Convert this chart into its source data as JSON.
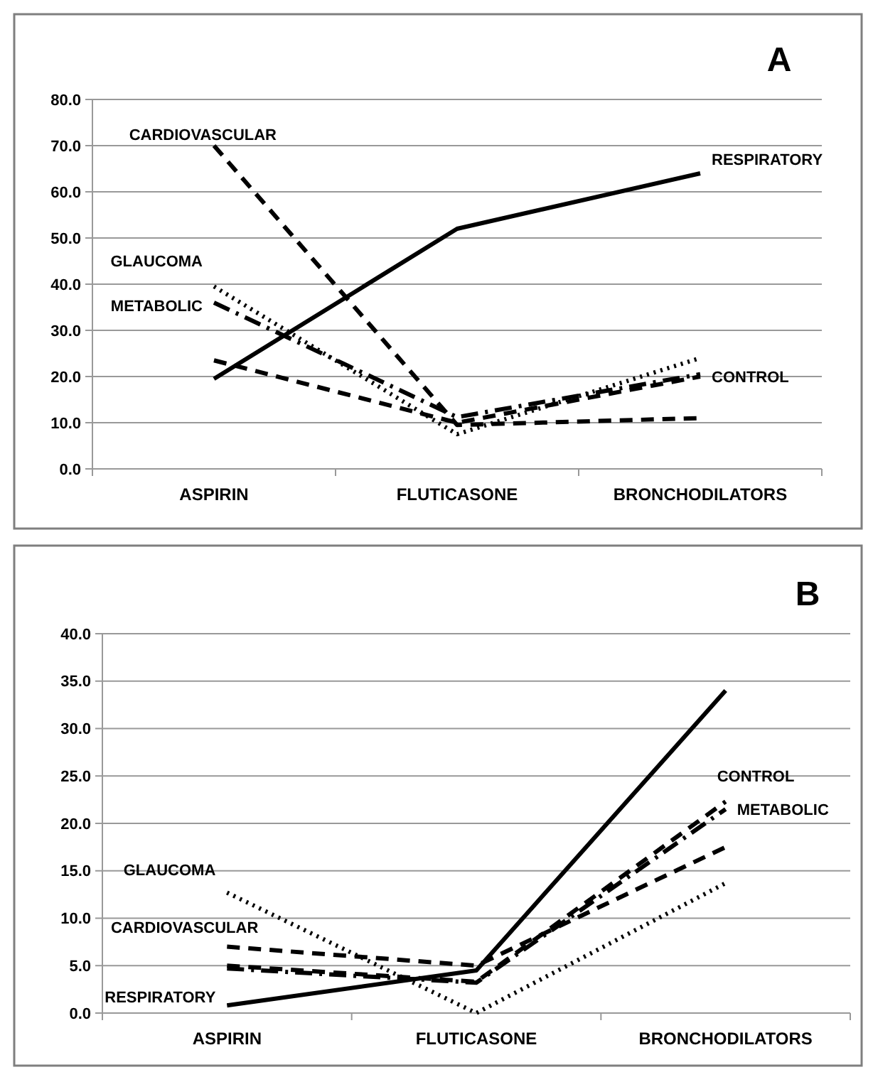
{
  "chart_data": [
    {
      "type": "line",
      "title": "A",
      "categories": [
        "ASPIRIN",
        "FLUTICASONE",
        "BRONCHODILATORS"
      ],
      "ylim": [
        0,
        80
      ],
      "yticks": [
        {
          "value": 0,
          "label": "0.0"
        },
        {
          "value": 10,
          "label": "10.0"
        },
        {
          "value": 20,
          "label": "20.0"
        },
        {
          "value": 30,
          "label": "30.0"
        },
        {
          "value": 40,
          "label": "40.0"
        },
        {
          "value": 50,
          "label": "50.0"
        },
        {
          "value": 60,
          "label": "60.0"
        },
        {
          "value": 70,
          "label": "70.0"
        },
        {
          "value": 80,
          "label": "80.0"
        }
      ],
      "grid": "y",
      "marker": "none",
      "series": [
        {
          "name": "RESPIRATORY",
          "color": "#000000",
          "line_style": "solid",
          "values": [
            19.5,
            52,
            64
          ]
        },
        {
          "name": "CARDIOVASCULAR",
          "color": "#000000",
          "line_style": "dashed",
          "values": [
            70,
            9.5,
            11
          ]
        },
        {
          "name": "GLAUCOMA",
          "color": "#000000",
          "line_style": "dotted",
          "values": [
            39.5,
            7.5,
            24
          ]
        },
        {
          "name": "METABOLIC",
          "color": "#000000",
          "line_style": "dashdot",
          "values": [
            36,
            11.2,
            20.5
          ]
        },
        {
          "name": "CONTROL",
          "color": "#000000",
          "line_style": "dashed",
          "values": [
            23.5,
            10,
            20
          ]
        }
      ]
    },
    {
      "type": "line",
      "title": "B",
      "categories": [
        "ASPIRIN",
        "FLUTICASONE",
        "BRONCHODILATORS"
      ],
      "ylim": [
        0,
        40
      ],
      "yticks": [
        {
          "value": 0,
          "label": "0.0"
        },
        {
          "value": 5,
          "label": "5.0"
        },
        {
          "value": 10,
          "label": "10.0"
        },
        {
          "value": 15,
          "label": "15.0"
        },
        {
          "value": 20,
          "label": "20.0"
        },
        {
          "value": 25,
          "label": "25.0"
        },
        {
          "value": 30,
          "label": "30.0"
        },
        {
          "value": 35,
          "label": "35.0"
        },
        {
          "value": 40,
          "label": "40.0"
        }
      ],
      "grid": "y",
      "marker": "none",
      "series": [
        {
          "name": "RESPIRATORY",
          "color": "#000000",
          "line_style": "solid",
          "values": [
            0.8,
            4.5,
            34
          ]
        },
        {
          "name": "CARDIOVASCULAR",
          "color": "#000000",
          "line_style": "dashed",
          "values": [
            7,
            5,
            17.5
          ]
        },
        {
          "name": "GLAUCOMA",
          "color": "#000000",
          "line_style": "dotted",
          "values": [
            12.7,
            0,
            13.7
          ]
        },
        {
          "name": "METABOLIC",
          "color": "#000000",
          "line_style": "dashdot",
          "values": [
            4.7,
            3.2,
            21.5
          ]
        },
        {
          "name": "CONTROL",
          "color": "#000000",
          "line_style": "dashed",
          "values": [
            5,
            3.3,
            22.3
          ]
        }
      ]
    }
  ]
}
